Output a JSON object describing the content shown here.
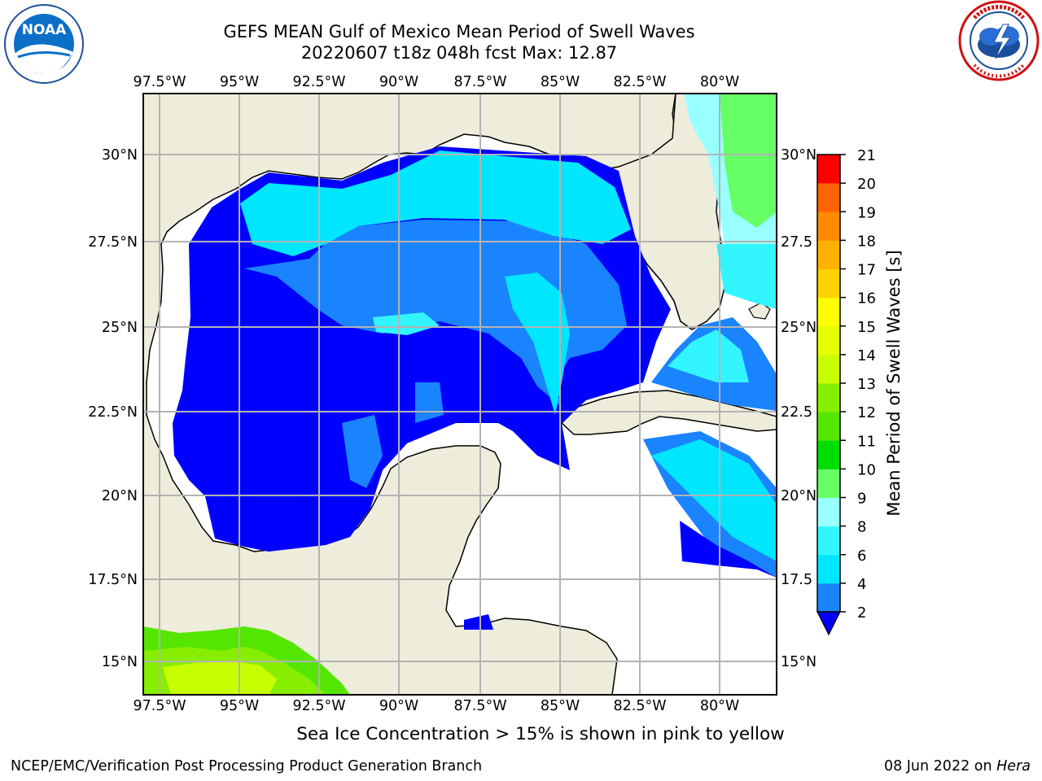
{
  "title": {
    "line1": "GEFS MEAN Gulf of Mexico Mean Period of Swell Waves",
    "line2": "20220607 t18z 048h fcst   Max: 12.87"
  },
  "map": {
    "lon_ticks": [
      "97.5°W",
      "95°W",
      "92.5°W",
      "90°W",
      "87.5°W",
      "85°W",
      "82.5°W",
      "80°W"
    ],
    "lat_ticks_left": [
      "30°N",
      "27.5°N",
      "25°N",
      "22.5°N",
      "20°N",
      "17.5°N",
      "15°N"
    ],
    "lat_ticks_right": [
      "30°N",
      "27.5",
      "25°N",
      "22.5",
      "20°N",
      "17.5",
      "15°N"
    ],
    "land_color": "#eeecdb",
    "grid_color": "#b3b3b3"
  },
  "colorbar": {
    "label": "Mean Period of Swell Waves [s]",
    "ticks": [
      "2",
      "4",
      "6",
      "8",
      "9",
      "10",
      "11",
      "12",
      "13",
      "14",
      "15",
      "16",
      "17",
      "18",
      "19",
      "20",
      "21"
    ],
    "colors": [
      "#1a84ff",
      "#00e6ff",
      "#33f5ff",
      "#99ffff",
      "#66ff66",
      "#00dd00",
      "#55e600",
      "#88ee00",
      "#c8ff00",
      "#e6ff00",
      "#ffff00",
      "#ffd200",
      "#ffb000",
      "#ff8c00",
      "#ff6400",
      "#ff3000"
    ],
    "under_color": "#0000ff",
    "top_color": "#ff0000"
  },
  "logos": {
    "noaa_text": "NOAA",
    "noaa_ring": "NATIONAL OCEANIC AND ATMOSPHERIC ADMINISTRATION · U.S. DEPARTMENT OF COMMERCE",
    "nws_ring": "NATIONAL WEATHER SERVICE"
  },
  "note": "Sea Ice Concentration > 15% is shown in pink to yellow",
  "footer": {
    "left": "NCEP/EMC/Verification Post Processing Product Generation Branch",
    "right_date": "08 Jun 2022 on ",
    "right_host": "Hera"
  }
}
